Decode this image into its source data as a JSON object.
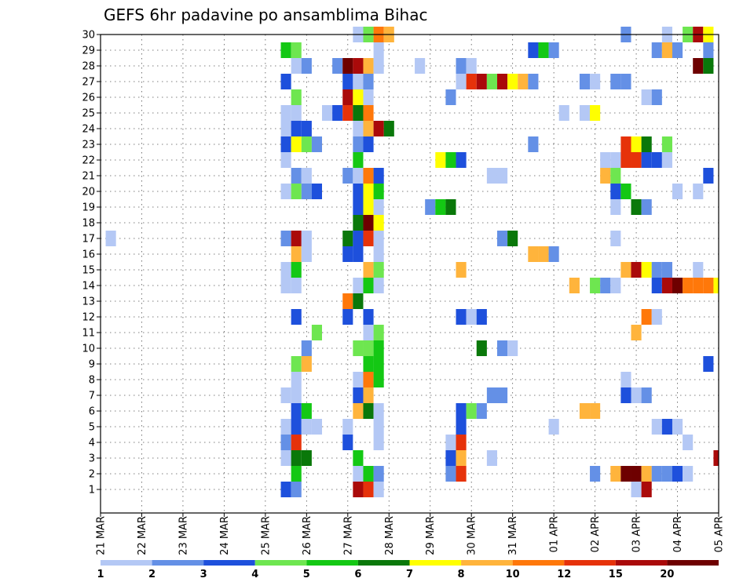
{
  "chart_data": {
    "type": "heatmap",
    "title": "GEFS 6hr padavine po ansamblima Bihac",
    "xlabel": "",
    "ylabel": "",
    "x_tick_labels": [
      "21 MAR",
      "22 MAR",
      "23 MAR",
      "24 MAR",
      "25 MAR",
      "26 MAR",
      "27 MAR",
      "28 MAR",
      "29 MAR",
      "30 MAR",
      "31 MAR",
      "01 APR",
      "02 APR",
      "03 APR",
      "04 APR",
      "05 APR"
    ],
    "x_range_steps": [
      0,
      60
    ],
    "y_tick_labels": [
      "1",
      "2",
      "3",
      "4",
      "5",
      "6",
      "7",
      "8",
      "9",
      "10",
      "11",
      "12",
      "13",
      "14",
      "15",
      "16",
      "17",
      "18",
      "19",
      "20",
      "21",
      "22",
      "23",
      "24",
      "25",
      "26",
      "27",
      "28",
      "29",
      "30"
    ],
    "y_range": [
      0,
      30
    ],
    "grid": true,
    "colorbar": {
      "position": "bottom",
      "levels": [
        "1",
        "2",
        "3",
        "4",
        "5",
        "6",
        "7",
        "8",
        "10",
        "12",
        "15",
        "20"
      ],
      "colors": [
        "#b4c8f5",
        "#6490e6",
        "#1e50dc",
        "#6ee650",
        "#14c814",
        "#0a780a",
        "#ffff00",
        "#ffb43c",
        "#ff780a",
        "#e6320a",
        "#aa0a0a",
        "#6e0000"
      ]
    },
    "cells": [
      {
        "y": 30,
        "t": 25,
        "c": 1
      },
      {
        "y": 30,
        "t": 26,
        "c": 4
      },
      {
        "y": 30,
        "t": 27,
        "c": 9
      },
      {
        "y": 30,
        "t": 28,
        "c": 8
      },
      {
        "y": 30,
        "t": 51,
        "c": 2
      },
      {
        "y": 30,
        "t": 55,
        "c": 1
      },
      {
        "y": 30,
        "t": 57,
        "c": 4
      },
      {
        "y": 30,
        "t": 58,
        "c": 11
      },
      {
        "y": 30,
        "t": 59,
        "c": 7
      },
      {
        "y": 29,
        "t": 18,
        "c": 5
      },
      {
        "y": 29,
        "t": 19,
        "c": 4
      },
      {
        "y": 29,
        "t": 27,
        "c": 1
      },
      {
        "y": 29,
        "t": 42,
        "c": 3
      },
      {
        "y": 29,
        "t": 43,
        "c": 5
      },
      {
        "y": 29,
        "t": 44,
        "c": 2
      },
      {
        "y": 29,
        "t": 54,
        "c": 2
      },
      {
        "y": 29,
        "t": 55,
        "c": 8
      },
      {
        "y": 29,
        "t": 56,
        "c": 2
      },
      {
        "y": 29,
        "t": 59,
        "c": 2
      },
      {
        "y": 28,
        "t": 19,
        "c": 1
      },
      {
        "y": 28,
        "t": 20,
        "c": 2
      },
      {
        "y": 28,
        "t": 23,
        "c": 2
      },
      {
        "y": 28,
        "t": 24,
        "c": 12
      },
      {
        "y": 28,
        "t": 25,
        "c": 11
      },
      {
        "y": 28,
        "t": 26,
        "c": 8
      },
      {
        "y": 28,
        "t": 27,
        "c": 1
      },
      {
        "y": 28,
        "t": 31,
        "c": 1
      },
      {
        "y": 28,
        "t": 35,
        "c": 2
      },
      {
        "y": 28,
        "t": 36,
        "c": 1
      },
      {
        "y": 28,
        "t": 58,
        "c": 12
      },
      {
        "y": 28,
        "t": 59,
        "c": 6
      },
      {
        "y": 27,
        "t": 18,
        "c": 3
      },
      {
        "y": 27,
        "t": 24,
        "c": 3
      },
      {
        "y": 27,
        "t": 25,
        "c": 1
      },
      {
        "y": 27,
        "t": 26,
        "c": 2
      },
      {
        "y": 27,
        "t": 35,
        "c": 1
      },
      {
        "y": 27,
        "t": 36,
        "c": 10
      },
      {
        "y": 27,
        "t": 37,
        "c": 11
      },
      {
        "y": 27,
        "t": 38,
        "c": 4
      },
      {
        "y": 27,
        "t": 39,
        "c": 11
      },
      {
        "y": 27,
        "t": 40,
        "c": 7
      },
      {
        "y": 27,
        "t": 41,
        "c": 8
      },
      {
        "y": 27,
        "t": 42,
        "c": 2
      },
      {
        "y": 27,
        "t": 47,
        "c": 2
      },
      {
        "y": 27,
        "t": 48,
        "c": 1
      },
      {
        "y": 27,
        "t": 50,
        "c": 2
      },
      {
        "y": 27,
        "t": 51,
        "c": 2
      },
      {
        "y": 26,
        "t": 19,
        "c": 4
      },
      {
        "y": 26,
        "t": 24,
        "c": 11
      },
      {
        "y": 26,
        "t": 25,
        "c": 7
      },
      {
        "y": 26,
        "t": 26,
        "c": 1
      },
      {
        "y": 26,
        "t": 34,
        "c": 2
      },
      {
        "y": 26,
        "t": 53,
        "c": 1
      },
      {
        "y": 26,
        "t": 54,
        "c": 2
      },
      {
        "y": 25,
        "t": 18,
        "c": 1
      },
      {
        "y": 25,
        "t": 19,
        "c": 1
      },
      {
        "y": 25,
        "t": 22,
        "c": 1
      },
      {
        "y": 25,
        "t": 23,
        "c": 3
      },
      {
        "y": 25,
        "t": 24,
        "c": 10
      },
      {
        "y": 25,
        "t": 25,
        "c": 6
      },
      {
        "y": 25,
        "t": 26,
        "c": 9
      },
      {
        "y": 25,
        "t": 45,
        "c": 1
      },
      {
        "y": 25,
        "t": 47,
        "c": 1
      },
      {
        "y": 25,
        "t": 48,
        "c": 7
      },
      {
        "y": 24,
        "t": 18,
        "c": 1
      },
      {
        "y": 24,
        "t": 19,
        "c": 3
      },
      {
        "y": 24,
        "t": 20,
        "c": 3
      },
      {
        "y": 24,
        "t": 25,
        "c": 1
      },
      {
        "y": 24,
        "t": 26,
        "c": 8
      },
      {
        "y": 24,
        "t": 27,
        "c": 11
      },
      {
        "y": 24,
        "t": 28,
        "c": 6
      },
      {
        "y": 23,
        "t": 18,
        "c": 3
      },
      {
        "y": 23,
        "t": 19,
        "c": 7
      },
      {
        "y": 23,
        "t": 20,
        "c": 4
      },
      {
        "y": 23,
        "t": 21,
        "c": 2
      },
      {
        "y": 23,
        "t": 25,
        "c": 2
      },
      {
        "y": 23,
        "t": 26,
        "c": 3
      },
      {
        "y": 23,
        "t": 42,
        "c": 2
      },
      {
        "y": 23,
        "t": 51,
        "c": 10
      },
      {
        "y": 23,
        "t": 52,
        "c": 7
      },
      {
        "y": 23,
        "t": 53,
        "c": 6
      },
      {
        "y": 23,
        "t": 55,
        "c": 4
      },
      {
        "y": 22,
        "t": 18,
        "c": 1
      },
      {
        "y": 22,
        "t": 25,
        "c": 5
      },
      {
        "y": 22,
        "t": 33,
        "c": 7
      },
      {
        "y": 22,
        "t": 34,
        "c": 5
      },
      {
        "y": 22,
        "t": 35,
        "c": 3
      },
      {
        "y": 22,
        "t": 49,
        "c": 1
      },
      {
        "y": 22,
        "t": 50,
        "c": 1
      },
      {
        "y": 22,
        "t": 51,
        "c": 10
      },
      {
        "y": 22,
        "t": 52,
        "c": 10
      },
      {
        "y": 22,
        "t": 53,
        "c": 3
      },
      {
        "y": 22,
        "t": 54,
        "c": 3
      },
      {
        "y": 22,
        "t": 55,
        "c": 1
      },
      {
        "y": 21,
        "t": 19,
        "c": 2
      },
      {
        "y": 21,
        "t": 20,
        "c": 1
      },
      {
        "y": 21,
        "t": 24,
        "c": 2
      },
      {
        "y": 21,
        "t": 25,
        "c": 1
      },
      {
        "y": 21,
        "t": 26,
        "c": 9
      },
      {
        "y": 21,
        "t": 27,
        "c": 3
      },
      {
        "y": 21,
        "t": 38,
        "c": 1
      },
      {
        "y": 21,
        "t": 39,
        "c": 1
      },
      {
        "y": 21,
        "t": 49,
        "c": 8
      },
      {
        "y": 21,
        "t": 50,
        "c": 4
      },
      {
        "y": 21,
        "t": 59,
        "c": 3
      },
      {
        "y": 20,
        "t": 18,
        "c": 1
      },
      {
        "y": 20,
        "t": 19,
        "c": 4
      },
      {
        "y": 20,
        "t": 20,
        "c": 2
      },
      {
        "y": 20,
        "t": 21,
        "c": 3
      },
      {
        "y": 20,
        "t": 25,
        "c": 3
      },
      {
        "y": 20,
        "t": 26,
        "c": 7
      },
      {
        "y": 20,
        "t": 27,
        "c": 5
      },
      {
        "y": 20,
        "t": 50,
        "c": 3
      },
      {
        "y": 20,
        "t": 51,
        "c": 5
      },
      {
        "y": 20,
        "t": 56,
        "c": 1
      },
      {
        "y": 20,
        "t": 58,
        "c": 1
      },
      {
        "y": 19,
        "t": 25,
        "c": 3
      },
      {
        "y": 19,
        "t": 26,
        "c": 7
      },
      {
        "y": 19,
        "t": 27,
        "c": 1
      },
      {
        "y": 19,
        "t": 32,
        "c": 2
      },
      {
        "y": 19,
        "t": 33,
        "c": 5
      },
      {
        "y": 19,
        "t": 34,
        "c": 6
      },
      {
        "y": 19,
        "t": 50,
        "c": 1
      },
      {
        "y": 19,
        "t": 52,
        "c": 6
      },
      {
        "y": 19,
        "t": 53,
        "c": 2
      },
      {
        "y": 18,
        "t": 25,
        "c": 6
      },
      {
        "y": 18,
        "t": 26,
        "c": 12
      },
      {
        "y": 18,
        "t": 27,
        "c": 7
      },
      {
        "y": 17,
        "t": 1,
        "c": 1
      },
      {
        "y": 17,
        "t": 18,
        "c": 2
      },
      {
        "y": 17,
        "t": 19,
        "c": 11
      },
      {
        "y": 17,
        "t": 20,
        "c": 1
      },
      {
        "y": 17,
        "t": 24,
        "c": 6
      },
      {
        "y": 17,
        "t": 25,
        "c": 3
      },
      {
        "y": 17,
        "t": 26,
        "c": 10
      },
      {
        "y": 17,
        "t": 27,
        "c": 1
      },
      {
        "y": 17,
        "t": 39,
        "c": 2
      },
      {
        "y": 17,
        "t": 40,
        "c": 6
      },
      {
        "y": 17,
        "t": 50,
        "c": 1
      },
      {
        "y": 16,
        "t": 19,
        "c": 8
      },
      {
        "y": 16,
        "t": 20,
        "c": 1
      },
      {
        "y": 16,
        "t": 24,
        "c": 3
      },
      {
        "y": 16,
        "t": 25,
        "c": 3
      },
      {
        "y": 16,
        "t": 27,
        "c": 1
      },
      {
        "y": 16,
        "t": 42,
        "c": 8
      },
      {
        "y": 16,
        "t": 43,
        "c": 8
      },
      {
        "y": 16,
        "t": 44,
        "c": 2
      },
      {
        "y": 15,
        "t": 18,
        "c": 1
      },
      {
        "y": 15,
        "t": 19,
        "c": 5
      },
      {
        "y": 15,
        "t": 26,
        "c": 8
      },
      {
        "y": 15,
        "t": 27,
        "c": 4
      },
      {
        "y": 15,
        "t": 35,
        "c": 8
      },
      {
        "y": 15,
        "t": 51,
        "c": 8
      },
      {
        "y": 15,
        "t": 52,
        "c": 11
      },
      {
        "y": 15,
        "t": 53,
        "c": 7
      },
      {
        "y": 15,
        "t": 54,
        "c": 2
      },
      {
        "y": 15,
        "t": 55,
        "c": 2
      },
      {
        "y": 15,
        "t": 58,
        "c": 1
      },
      {
        "y": 14,
        "t": 18,
        "c": 1
      },
      {
        "y": 14,
        "t": 19,
        "c": 1
      },
      {
        "y": 14,
        "t": 25,
        "c": 1
      },
      {
        "y": 14,
        "t": 26,
        "c": 5
      },
      {
        "y": 14,
        "t": 27,
        "c": 1
      },
      {
        "y": 14,
        "t": 46,
        "c": 8
      },
      {
        "y": 14,
        "t": 48,
        "c": 4
      },
      {
        "y": 14,
        "t": 49,
        "c": 2
      },
      {
        "y": 14,
        "t": 50,
        "c": 1
      },
      {
        "y": 14,
        "t": 54,
        "c": 3
      },
      {
        "y": 14,
        "t": 55,
        "c": 11
      },
      {
        "y": 14,
        "t": 56,
        "c": 12
      },
      {
        "y": 14,
        "t": 57,
        "c": 9
      },
      {
        "y": 14,
        "t": 58,
        "c": 9
      },
      {
        "y": 14,
        "t": 59,
        "c": 9
      },
      {
        "y": 14,
        "t": 60,
        "c": 7
      },
      {
        "y": 13,
        "t": 24,
        "c": 9
      },
      {
        "y": 13,
        "t": 25,
        "c": 6
      },
      {
        "y": 12,
        "t": 19,
        "c": 3
      },
      {
        "y": 12,
        "t": 24,
        "c": 3
      },
      {
        "y": 12,
        "t": 26,
        "c": 3
      },
      {
        "y": 12,
        "t": 35,
        "c": 3
      },
      {
        "y": 12,
        "t": 36,
        "c": 1
      },
      {
        "y": 12,
        "t": 37,
        "c": 3
      },
      {
        "y": 12,
        "t": 53,
        "c": 9
      },
      {
        "y": 12,
        "t": 54,
        "c": 1
      },
      {
        "y": 11,
        "t": 21,
        "c": 4
      },
      {
        "y": 11,
        "t": 26,
        "c": 1
      },
      {
        "y": 11,
        "t": 27,
        "c": 4
      },
      {
        "y": 11,
        "t": 52,
        "c": 8
      },
      {
        "y": 10,
        "t": 20,
        "c": 2
      },
      {
        "y": 10,
        "t": 25,
        "c": 4
      },
      {
        "y": 10,
        "t": 26,
        "c": 4
      },
      {
        "y": 10,
        "t": 27,
        "c": 5
      },
      {
        "y": 10,
        "t": 37,
        "c": 6
      },
      {
        "y": 10,
        "t": 39,
        "c": 2
      },
      {
        "y": 10,
        "t": 40,
        "c": 1
      },
      {
        "y": 9,
        "t": 19,
        "c": 4
      },
      {
        "y": 9,
        "t": 20,
        "c": 8
      },
      {
        "y": 9,
        "t": 26,
        "c": 5
      },
      {
        "y": 9,
        "t": 27,
        "c": 5
      },
      {
        "y": 9,
        "t": 59,
        "c": 3
      },
      {
        "y": 8,
        "t": 19,
        "c": 1
      },
      {
        "y": 8,
        "t": 25,
        "c": 1
      },
      {
        "y": 8,
        "t": 26,
        "c": 9
      },
      {
        "y": 8,
        "t": 27,
        "c": 5
      },
      {
        "y": 8,
        "t": 51,
        "c": 1
      },
      {
        "y": 7,
        "t": 18,
        "c": 1
      },
      {
        "y": 7,
        "t": 19,
        "c": 1
      },
      {
        "y": 7,
        "t": 25,
        "c": 3
      },
      {
        "y": 7,
        "t": 26,
        "c": 8
      },
      {
        "y": 7,
        "t": 38,
        "c": 2
      },
      {
        "y": 7,
        "t": 39,
        "c": 2
      },
      {
        "y": 7,
        "t": 51,
        "c": 3
      },
      {
        "y": 7,
        "t": 52,
        "c": 1
      },
      {
        "y": 7,
        "t": 53,
        "c": 2
      },
      {
        "y": 6,
        "t": 19,
        "c": 3
      },
      {
        "y": 6,
        "t": 20,
        "c": 5
      },
      {
        "y": 6,
        "t": 25,
        "c": 8
      },
      {
        "y": 6,
        "t": 26,
        "c": 6
      },
      {
        "y": 6,
        "t": 27,
        "c": 1
      },
      {
        "y": 6,
        "t": 35,
        "c": 3
      },
      {
        "y": 6,
        "t": 36,
        "c": 4
      },
      {
        "y": 6,
        "t": 37,
        "c": 2
      },
      {
        "y": 6,
        "t": 47,
        "c": 8
      },
      {
        "y": 6,
        "t": 48,
        "c": 8
      },
      {
        "y": 5,
        "t": 18,
        "c": 1
      },
      {
        "y": 5,
        "t": 19,
        "c": 3
      },
      {
        "y": 5,
        "t": 20,
        "c": 1
      },
      {
        "y": 5,
        "t": 21,
        "c": 1
      },
      {
        "y": 5,
        "t": 24,
        "c": 1
      },
      {
        "y": 5,
        "t": 27,
        "c": 1
      },
      {
        "y": 5,
        "t": 35,
        "c": 3
      },
      {
        "y": 5,
        "t": 44,
        "c": 1
      },
      {
        "y": 5,
        "t": 54,
        "c": 1
      },
      {
        "y": 5,
        "t": 55,
        "c": 3
      },
      {
        "y": 5,
        "t": 56,
        "c": 1
      },
      {
        "y": 4,
        "t": 18,
        "c": 2
      },
      {
        "y": 4,
        "t": 19,
        "c": 10
      },
      {
        "y": 4,
        "t": 24,
        "c": 3
      },
      {
        "y": 4,
        "t": 27,
        "c": 1
      },
      {
        "y": 4,
        "t": 34,
        "c": 1
      },
      {
        "y": 4,
        "t": 35,
        "c": 10
      },
      {
        "y": 4,
        "t": 57,
        "c": 1
      },
      {
        "y": 3,
        "t": 18,
        "c": 1
      },
      {
        "y": 3,
        "t": 19,
        "c": 6
      },
      {
        "y": 3,
        "t": 20,
        "c": 6
      },
      {
        "y": 3,
        "t": 25,
        "c": 5
      },
      {
        "y": 3,
        "t": 34,
        "c": 3
      },
      {
        "y": 3,
        "t": 35,
        "c": 8
      },
      {
        "y": 3,
        "t": 38,
        "c": 1
      },
      {
        "y": 3,
        "t": 60,
        "c": 11
      },
      {
        "y": 2,
        "t": 19,
        "c": 5
      },
      {
        "y": 2,
        "t": 25,
        "c": 1
      },
      {
        "y": 2,
        "t": 26,
        "c": 5
      },
      {
        "y": 2,
        "t": 27,
        "c": 2
      },
      {
        "y": 2,
        "t": 34,
        "c": 2
      },
      {
        "y": 2,
        "t": 35,
        "c": 10
      },
      {
        "y": 2,
        "t": 48,
        "c": 2
      },
      {
        "y": 2,
        "t": 50,
        "c": 8
      },
      {
        "y": 2,
        "t": 51,
        "c": 12
      },
      {
        "y": 2,
        "t": 52,
        "c": 12
      },
      {
        "y": 2,
        "t": 53,
        "c": 8
      },
      {
        "y": 2,
        "t": 54,
        "c": 2
      },
      {
        "y": 2,
        "t": 55,
        "c": 2
      },
      {
        "y": 2,
        "t": 56,
        "c": 3
      },
      {
        "y": 2,
        "t": 57,
        "c": 1
      },
      {
        "y": 1,
        "t": 18,
        "c": 3
      },
      {
        "y": 1,
        "t": 19,
        "c": 2
      },
      {
        "y": 1,
        "t": 25,
        "c": 11
      },
      {
        "y": 1,
        "t": 26,
        "c": 10
      },
      {
        "y": 1,
        "t": 27,
        "c": 1
      },
      {
        "y": 1,
        "t": 52,
        "c": 1
      },
      {
        "y": 1,
        "t": 53,
        "c": 11
      }
    ]
  }
}
